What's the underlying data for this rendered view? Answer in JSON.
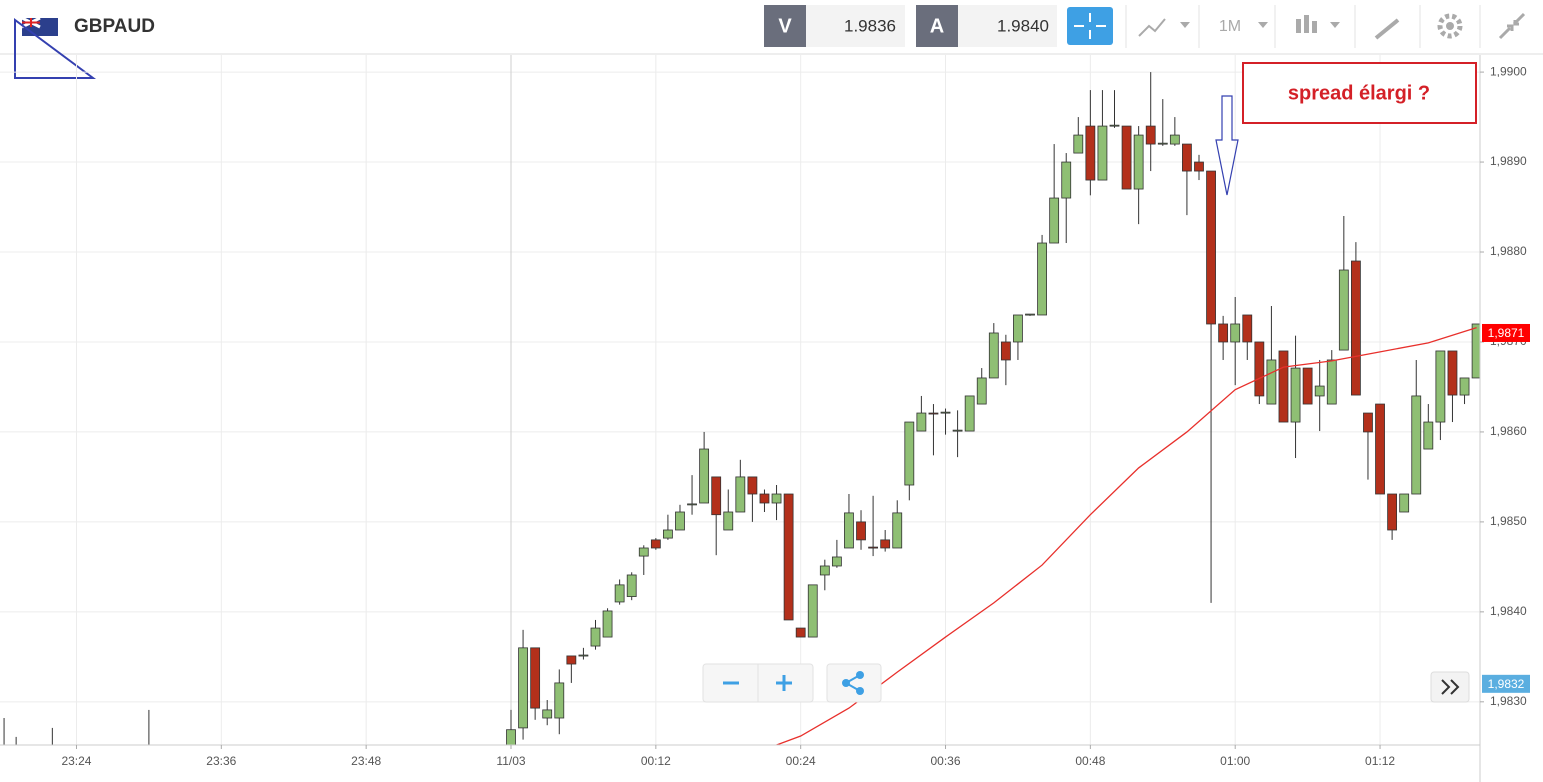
{
  "toolbar": {
    "symbol": "GBPAUD",
    "bid_label": "V",
    "bid": "1.9836",
    "ask_label": "A",
    "ask": "1.9840",
    "timeframe": "1M"
  },
  "chart_data": {
    "type": "candlestick",
    "annotation": "spread élargi ?",
    "ylim": [
      1.98252,
      1.99019
    ],
    "yticks": [
      {
        "value": 1.983,
        "label": "1,9830"
      },
      {
        "value": 1.984,
        "label": "1,9840"
      },
      {
        "value": 1.985,
        "label": "1,9850"
      },
      {
        "value": 1.986,
        "label": "1,9860"
      },
      {
        "value": 1.987,
        "label": "1,9870"
      },
      {
        "value": 1.988,
        "label": "1,9880"
      },
      {
        "value": 1.989,
        "label": "1,9890"
      },
      {
        "value": 1.99,
        "label": "1,9900"
      }
    ],
    "xticks": [
      "23:24",
      "23:36",
      "23:48",
      {
        "value": "00:00",
        "label": "11/03"
      },
      "00:12",
      "00:24",
      "00:36",
      "00:48",
      "01:00",
      "01:12"
    ],
    "grid": true,
    "up_color": "#8fbf74",
    "down_color": "#b3301b",
    "candles": {
      "x": [
        "23:18",
        "23:19",
        "23:22",
        "23:30",
        "00:00",
        "00:01",
        "00:02",
        "00:03",
        "00:04",
        "00:05",
        "00:06",
        "00:07",
        "00:08",
        "00:09",
        "00:10",
        "00:11",
        "00:12",
        "00:13",
        "00:14",
        "00:15",
        "00:16",
        "00:17",
        "00:18",
        "00:19",
        "00:20",
        "00:21",
        "00:22",
        "00:23",
        "00:24",
        "00:25",
        "00:26",
        "00:27",
        "00:28",
        "00:29",
        "00:30",
        "00:31",
        "00:32",
        "00:33",
        "00:34",
        "00:35",
        "00:36",
        "00:37",
        "00:38",
        "00:39",
        "00:40",
        "00:41",
        "00:42",
        "00:43",
        "00:44",
        "00:45",
        "00:46",
        "00:47",
        "00:48",
        "00:49",
        "00:50",
        "00:51",
        "00:52",
        "00:53",
        "00:54",
        "00:55",
        "00:56",
        "00:57",
        "00:58",
        "00:59",
        "01:00",
        "01:01",
        "01:02",
        "01:03",
        "01:04",
        "01:05",
        "01:06",
        "01:07",
        "01:08",
        "01:09",
        "01:10",
        "01:11",
        "01:12",
        "01:13",
        "01:14",
        "01:15",
        "01:16",
        "01:17",
        "01:18",
        "01:19",
        "01:20"
      ],
      "open": [
        1.9823,
        1.9823,
        1.9823,
        1.9823,
        1.98252,
        1.98271,
        1.9836,
        1.98282,
        1.98282,
        1.98351,
        1.98351,
        1.98362,
        1.98372,
        1.98411,
        1.98417,
        1.98462,
        1.9848,
        1.98482,
        1.98491,
        1.98519,
        1.98521,
        1.9855,
        1.98491,
        1.98511,
        1.9855,
        1.98531,
        1.98521,
        1.98531,
        1.98382,
        1.98372,
        1.98441,
        1.98451,
        1.98471,
        1.985,
        1.98472,
        1.9848,
        1.98471,
        1.98541,
        1.98601,
        1.98621,
        1.98621,
        1.98601,
        1.98601,
        1.98631,
        1.9866,
        1.987,
        1.987,
        1.9873,
        1.9873,
        1.9881,
        1.9886,
        1.9891,
        1.9894,
        1.9888,
        1.9894,
        1.9894,
        1.9887,
        1.9894,
        1.9892,
        1.9892,
        1.9892,
        1.989,
        1.9889,
        1.9872,
        1.987,
        1.9873,
        1.987,
        1.98631,
        1.9869,
        1.98611,
        1.98671,
        1.9864,
        1.98631,
        1.98691,
        1.9879,
        1.98621,
        1.98631,
        1.98531,
        1.98511,
        1.98531,
        1.98581,
        1.98611,
        1.9869,
        1.98641,
        1.9866
      ],
      "high": [
        1.98282,
        1.98261,
        1.98271,
        1.98291,
        1.98291,
        1.9838,
        1.9836,
        1.98302,
        1.98336,
        1.98351,
        1.9836,
        1.98391,
        1.98404,
        1.98436,
        1.98444,
        1.98474,
        1.98482,
        1.98508,
        1.98519,
        1.98552,
        1.986,
        1.9855,
        1.98536,
        1.98569,
        1.9855,
        1.98536,
        1.98541,
        1.98531,
        1.98382,
        1.9843,
        1.98458,
        1.9848,
        1.98531,
        1.98513,
        1.98529,
        1.98491,
        1.98524,
        1.98611,
        1.9864,
        1.98631,
        1.98626,
        1.98624,
        1.9864,
        1.98671,
        1.98721,
        1.98708,
        1.9873,
        1.98731,
        1.98819,
        1.9892,
        1.9891,
        1.9895,
        1.9898,
        1.9898,
        1.9898,
        1.9894,
        1.9894,
        1.99,
        1.9897,
        1.9895,
        1.9892,
        1.98908,
        1.9889,
        1.98729,
        1.9875,
        1.9873,
        1.987,
        1.9874,
        1.9869,
        1.98707,
        1.98671,
        1.9868,
        1.98691,
        1.9884,
        1.98811,
        1.98621,
        1.98631,
        1.98531,
        1.98531,
        1.9868,
        1.98631,
        1.9869,
        1.9869,
        1.9866,
        1.9872
      ],
      "low": [
        1.9822,
        1.9822,
        1.9822,
        1.9822,
        1.98252,
        1.98258,
        1.9828,
        1.98274,
        1.98264,
        1.98321,
        1.98347,
        1.98358,
        1.98372,
        1.98408,
        1.98413,
        1.98441,
        1.98469,
        1.9848,
        1.98491,
        1.98508,
        1.98521,
        1.98463,
        1.98491,
        1.98511,
        1.985,
        1.98511,
        1.98502,
        1.98391,
        1.98372,
        1.98372,
        1.98424,
        1.98449,
        1.98471,
        1.98469,
        1.98462,
        1.98467,
        1.98471,
        1.98524,
        1.98601,
        1.98574,
        1.98597,
        1.98572,
        1.98601,
        1.98631,
        1.9866,
        1.98652,
        1.9868,
        1.98729,
        1.9873,
        1.9881,
        1.9881,
        1.9891,
        1.98863,
        1.9888,
        1.98938,
        1.9887,
        1.98831,
        1.9889,
        1.98918,
        1.98918,
        1.98841,
        1.9888,
        1.9841,
        1.9868,
        1.98652,
        1.9868,
        1.98631,
        1.98631,
        1.98611,
        1.98571,
        1.98631,
        1.98601,
        1.98631,
        1.98691,
        1.98641,
        1.98547,
        1.98531,
        1.9848,
        1.98511,
        1.98531,
        1.98581,
        1.98591,
        1.98611,
        1.98631,
        1.9866
      ],
      "close": [
        1.9823,
        1.9823,
        1.9823,
        1.9823,
        1.98269,
        1.9836,
        1.98293,
        1.98291,
        1.98321,
        1.98342,
        1.98352,
        1.98382,
        1.98401,
        1.9843,
        1.98441,
        1.98471,
        1.98471,
        1.98491,
        1.98511,
        1.9852,
        1.98581,
        1.98508,
        1.98511,
        1.9855,
        1.98531,
        1.98521,
        1.98531,
        1.98391,
        1.98372,
        1.9843,
        1.98451,
        1.98461,
        1.9851,
        1.9848,
        1.98471,
        1.98471,
        1.9851,
        1.98611,
        1.98621,
        1.9862,
        1.98622,
        1.98602,
        1.9864,
        1.9866,
        1.9871,
        1.9868,
        1.9873,
        1.98731,
        1.9881,
        1.9886,
        1.989,
        1.9893,
        1.9888,
        1.9894,
        1.98941,
        1.9887,
        1.9893,
        1.9892,
        1.98921,
        1.9893,
        1.9889,
        1.9889,
        1.9872,
        1.987,
        1.9872,
        1.987,
        1.9864,
        1.9868,
        1.98611,
        1.98671,
        1.98631,
        1.98651,
        1.9868,
        1.9878,
        1.98641,
        1.986,
        1.98531,
        1.98491,
        1.98531,
        1.9864,
        1.98611,
        1.9869,
        1.98641,
        1.9866,
        1.9872
      ]
    },
    "lines": [
      {
        "color": "#e8302c",
        "x": [
          "00:22",
          "00:24",
          "00:28",
          "00:32",
          "00:36",
          "00:40",
          "00:44",
          "00:48",
          "00:52",
          "00:56",
          "01:00",
          "01:04",
          "01:08",
          "01:12",
          "01:16",
          "01:20"
        ],
        "values": [
          1.98252,
          1.98262,
          1.98293,
          1.98333,
          1.98372,
          1.9841,
          1.98452,
          1.98508,
          1.9856,
          1.986,
          1.98647,
          1.98672,
          1.98679,
          1.98689,
          1.98699,
          1.98716
        ]
      }
    ],
    "price_markers": [
      {
        "value": 1.9871,
        "label": "1,9871",
        "color": "#ff0000"
      },
      {
        "value": 1.9832,
        "label": "1,9832",
        "color": "#5aaee0"
      }
    ]
  }
}
